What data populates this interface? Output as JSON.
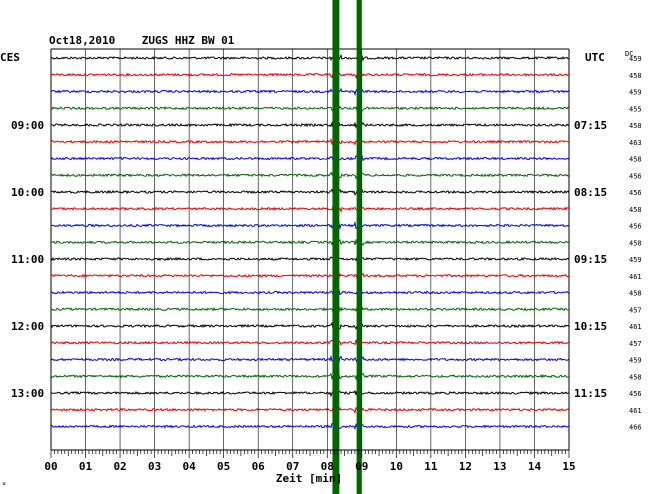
{
  "header": {
    "title": "Oct18,2010    ZUGS HHZ BW 01",
    "left_zone": "CES",
    "right_zone": "UTC",
    "dc_label": "DC"
  },
  "left_times": [
    "09:00",
    "10:00",
    "11:00",
    "12:00",
    "13:00"
  ],
  "right_times": [
    "07:15",
    "08:15",
    "09:15",
    "10:15",
    "11:15"
  ],
  "dc_values": [
    "459",
    "458",
    "459",
    "455",
    "458",
    "463",
    "458",
    "456",
    "456",
    "458",
    "456",
    "458",
    "459",
    "461",
    "458",
    "457",
    "461",
    "457",
    "459",
    "458",
    "456",
    "461",
    "466"
  ],
  "x_ticks": [
    "00",
    "01",
    "02",
    "03",
    "04",
    "05",
    "06",
    "07",
    "08",
    "09",
    "10",
    "11",
    "12",
    "13",
    "14",
    "15"
  ],
  "x_label": "Zeit [min]",
  "colors": {
    "cycle": [
      "#000000",
      "#e60000",
      "#0000e6",
      "#006600"
    ],
    "event": "#006600",
    "grid": "#000000"
  },
  "chart_data": {
    "type": "line",
    "title": "Oct18,2010    ZUGS HHZ BW 01",
    "xlabel": "Zeit [min]",
    "xlim": [
      0,
      15
    ],
    "trace_count": 23,
    "trace_interval_min": 15,
    "events": [
      {
        "start_min": 8.15,
        "end_min": 8.35
      },
      {
        "start_min": 8.85,
        "end_min": 9.0
      }
    ]
  }
}
